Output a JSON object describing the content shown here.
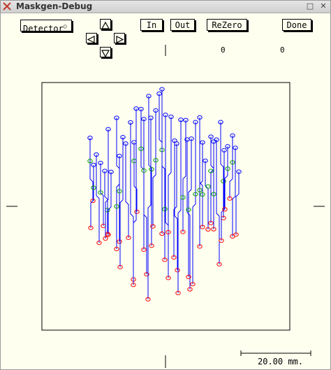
{
  "window": {
    "title": "Maskgen-Debug",
    "icon": "x11-app-icon"
  },
  "toolbar": {
    "detector_label": "Detector",
    "in_label": "In",
    "out_label": "Out",
    "rezero_label": "ReZero",
    "done_label": "Done"
  },
  "readouts": {
    "x_value": "0",
    "y_value": "0"
  },
  "scale_bar": {
    "label": "20.00 mm."
  },
  "colors": {
    "blue": "#0000ff",
    "red": "#ff0000",
    "green": "#00a000",
    "background": "#fffff0"
  }
}
